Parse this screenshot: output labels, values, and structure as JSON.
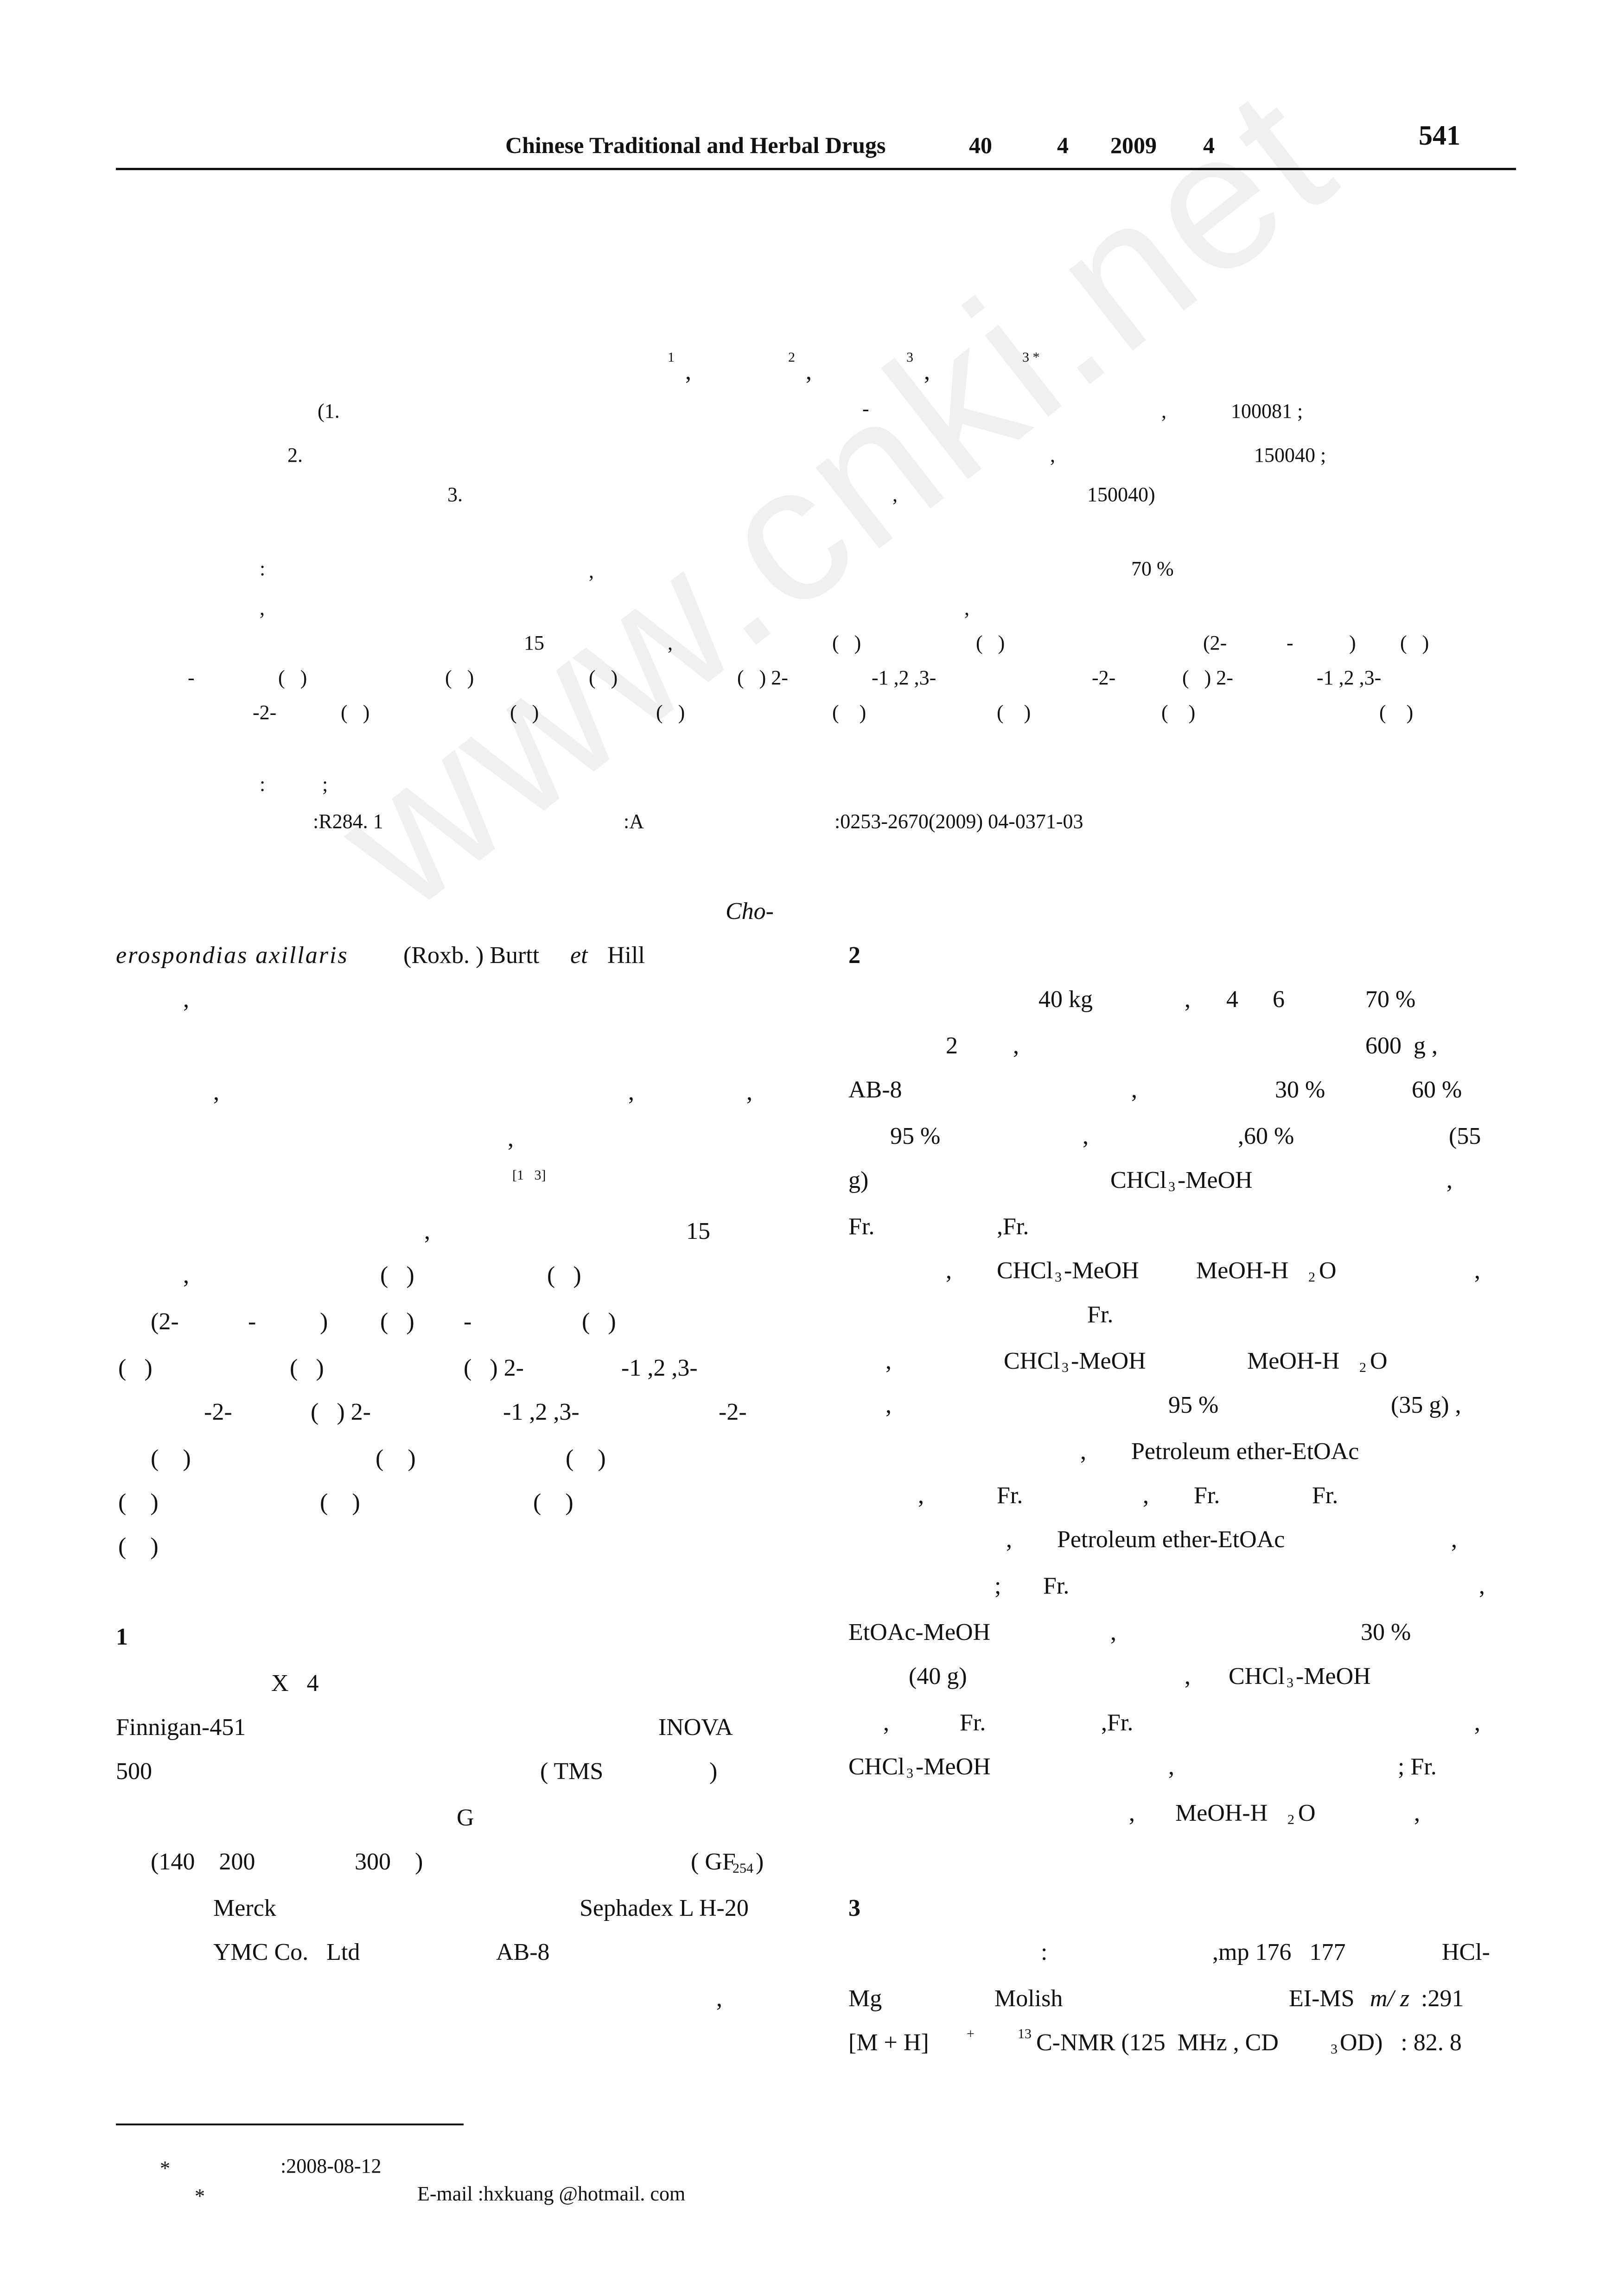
{
  "header": {
    "journal": "Chinese Traditional and Herbal Drugs",
    "volume": "40",
    "issue": "4",
    "year": "2009",
    "month": "4",
    "page_number": "541"
  },
  "authors": {
    "sup1": "1",
    "sep1": ",",
    "sup2": "2",
    "sep2": ",",
    "sup3": "3",
    "sep3": ",",
    "sup4": "3 *"
  },
  "affiliations": {
    "a1_open": "(1.",
    "a1_dash": "-",
    "a1_comma": ",",
    "a1_zip": "100081 ;",
    "a2_num": "2.",
    "a2_comma": ",",
    "a2_zip": "150040 ;",
    "a3_num": "3.",
    "a3_comma": ",",
    "a3_zip": "150040)"
  },
  "abstract": {
    "l1_colon": ":",
    "l1_comma": ",",
    "l1_pct": "70 %",
    "l2_comma1": ",",
    "l2_comma2": ",",
    "l3_a": "15",
    "l3_b": ",",
    "l3_c": "(   )",
    "l3_d": "(   )",
    "l3_e": "(2-",
    "l3_f": "-",
    "l3_g": ")",
    "l3_h": "(   )",
    "l4_a": "-",
    "l4_b": "(   )",
    "l4_c": "(   )",
    "l4_d": "(   )",
    "l4_e": "(   ) 2-",
    "l4_f": "-1 ,2 ,3-",
    "l4_g": "-2-",
    "l4_h": "(   ) 2-",
    "l4_i": "-1 ,2 ,3-",
    "l5_a": "-2-",
    "l5_b": "(   )",
    "l5_c": "(   )",
    "l5_d": "(   )",
    "l5_e": "(    )",
    "l5_f": "(    )",
    "l5_g": "(    )",
    "l5_h": "(    )"
  },
  "keywords": {
    "colon": ":",
    "semicolon": ";",
    "clc": ":R284. 1",
    "doc_code": ":A",
    "article_id": ":0253-2670(2009) 04-0371-03"
  },
  "left_column": {
    "intro_l1": "Cho-",
    "intro_l2_species": "erospondias axillaris",
    "intro_l2_rest": "(Roxb. ) Burtt",
    "intro_l2_et": "et",
    "intro_l2_hill": "Hill",
    "intro_l3": ",",
    "intro_l5_a": ",",
    "intro_l5_b": ",",
    "intro_l5_c": ",",
    "intro_l6": ",",
    "intro_ref": "[1   3]",
    "p2_l1_a": ",",
    "p2_l1_b": "15",
    "p2_l2_a": ",",
    "p2_l2_b": "(   )",
    "p2_l2_c": "(   )",
    "p2_l3_a": "(2-",
    "p2_l3_b": "-",
    "p2_l3_c": ")",
    "p2_l3_d": "(   )",
    "p2_l3_e": "-",
    "p2_l3_f": "(   )",
    "p2_l4_a": "(   )",
    "p2_l4_b": "(   )",
    "p2_l4_c": "(   ) 2-",
    "p2_l4_d": "-1 ,2 ,3-",
    "p2_l5_a": "-2-",
    "p2_l5_b": "(   ) 2-",
    "p2_l5_c": "-1 ,2 ,3-",
    "p2_l5_d": "-2-",
    "p2_l6_a": "(    )",
    "p2_l6_b": "(    )",
    "p2_l6_c": "(    )",
    "p2_l7_a": "(    )",
    "p2_l7_b": "(    )",
    "p2_l7_c": "(    )",
    "p2_l8_a": "(    )",
    "sec1_head": "1",
    "s1_l1": "X   4",
    "s1_l2_a": "Finnigan-451",
    "s1_l2_b": "INOVA",
    "s1_l3_a": "500",
    "s1_l3_b": "( TMS",
    "s1_l3_c": ")",
    "s1_l4": "G",
    "s1_l5_a": "(140    200",
    "s1_l5_b": "300    )",
    "s1_l5_c": "( GF",
    "s1_l5_sub": "254",
    "s1_l5_d": ")",
    "s1_l6_a": "Merck",
    "s1_l6_b": "Sephadex L H-20",
    "s1_l7_a": "YMC Co.   Ltd",
    "s1_l7_b": "AB-8",
    "s1_l8": ","
  },
  "right_column": {
    "sec2_head": "2",
    "r1_a": "40 kg",
    "r1_b": ",",
    "r1_c": "4",
    "r1_d": "6",
    "r1_e": "70 %",
    "r2_a": "2",
    "r2_b": ",",
    "r2_c": "600  g ,",
    "r3_a": "AB-8",
    "r3_b": ",",
    "r3_c": "30 %",
    "r3_d": "60 %",
    "r4_a": "95 %",
    "r4_b": ",",
    "r4_c": ",60 %",
    "r4_d": "(55",
    "r5_a": "g)",
    "r5_b": "CHCl",
    "r5_sub": "3",
    "r5_c": "-MeOH",
    "r5_d": ",",
    "r6_a": "Fr.",
    "r6_b": ",Fr.",
    "r7_a": ",",
    "r7_b": "CHCl",
    "r7_sub": "3",
    "r7_c": "-MeOH",
    "r7_d": "MeOH-H",
    "r7_sub2": "2",
    "r7_e": "O",
    "r7_f": ",",
    "r8_a": "Fr.",
    "r9_a": ",",
    "r9_b": "CHCl",
    "r9_sub": "3",
    "r9_c": "-MeOH",
    "r9_d": "MeOH-H",
    "r9_sub2": "2",
    "r9_e": "O",
    "r10_a": ",",
    "r10_b": "95 %",
    "r10_c": "(35 g) ,",
    "r11_a": ",",
    "r11_b": "Petroleum ether-EtOAc",
    "r12_a": ",",
    "r12_b": "Fr.",
    "r12_c": ",",
    "r12_d": "Fr.",
    "r12_e": "Fr.",
    "r13_a": ",",
    "r13_b": "Petroleum ether-EtOAc",
    "r13_c": ",",
    "r14_a": ";",
    "r14_b": "Fr.",
    "r14_c": ",",
    "r15_a": "EtOAc-MeOH",
    "r15_b": ",",
    "r15_c": "30 %",
    "r16_a": "(40 g)",
    "r16_b": ",",
    "r16_c": "CHCl",
    "r16_sub": "3",
    "r16_d": "-MeOH",
    "r17_a": ",",
    "r17_b": "Fr.",
    "r17_c": ",Fr.",
    "r17_d": ",",
    "r18_a": "CHCl",
    "r18_sub": "3",
    "r18_b": "-MeOH",
    "r18_c": ",",
    "r18_d": "; Fr.",
    "r19_a": ",",
    "r19_b": "MeOH-H",
    "r19_sub": "2",
    "r19_c": "O",
    "r19_d": ",",
    "sec3_head": "3",
    "r20_a": ":",
    "r20_b": ",mp 176   177",
    "r20_c": "HCl-",
    "r21_a": "Mg",
    "r21_b": "Molish",
    "r21_c": "EI-MS",
    "r21_d": "m/ z",
    "r21_e": ":291",
    "r22_a": "[M + H]",
    "r22_sup": "+",
    "r22_sup2": "13",
    "r22_b": "C-NMR (125  MHz , CD",
    "r22_sub": "3",
    "r22_c": "OD)   : 82. 8"
  },
  "footnote": {
    "star1": "*",
    "received": ":2008-08-12",
    "star2": "*",
    "email": "E-mail :hxkuang @hotmail. com"
  },
  "watermark": "www.cnki.net"
}
